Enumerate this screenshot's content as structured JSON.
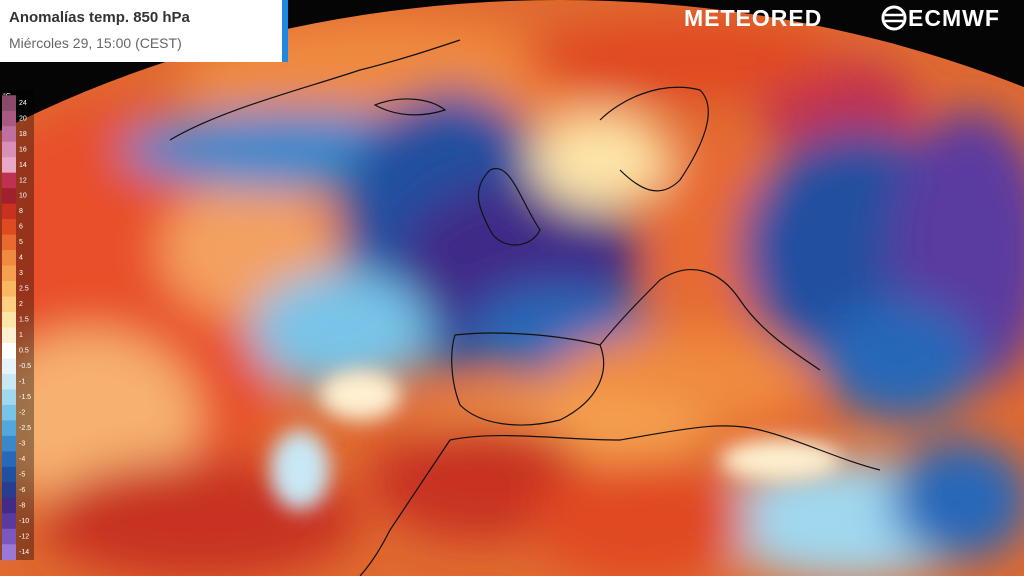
{
  "header": {
    "title": "Anomalías temp. 850 hPa",
    "subtitle": "Miércoles 29, 15:00 (CEST)"
  },
  "brands": {
    "meteored": "METEORED",
    "ecmwf": "ECMWF"
  },
  "legend": {
    "unit": "°C",
    "labels": [
      24,
      20,
      18,
      16,
      14,
      12,
      10,
      8,
      6,
      5,
      4,
      3,
      2.5,
      2,
      1.5,
      1,
      0.5,
      -0.5,
      -1,
      -1.5,
      -2,
      -2.5,
      -3,
      -4,
      -5,
      -6,
      -8,
      -10,
      -12,
      -14
    ],
    "colors": [
      "#8a4a6a",
      "#a85a80",
      "#c070a0",
      "#d890b8",
      "#e8a8c8",
      "#c03050",
      "#a02030",
      "#c83020",
      "#e04a20",
      "#e86a30",
      "#f08a40",
      "#f4a050",
      "#f8b860",
      "#fcd080",
      "#fde4a8",
      "#fef0d0",
      "#ffffff",
      "#e8f4fb",
      "#c8e8f5",
      "#a0d8f0",
      "#78c4e8",
      "#50a8dc",
      "#3888cc",
      "#2868b8",
      "#2050a0",
      "#283c90",
      "#402c88",
      "#5a3aa0",
      "#7a58c0",
      "#9a78d8"
    ]
  }
}
